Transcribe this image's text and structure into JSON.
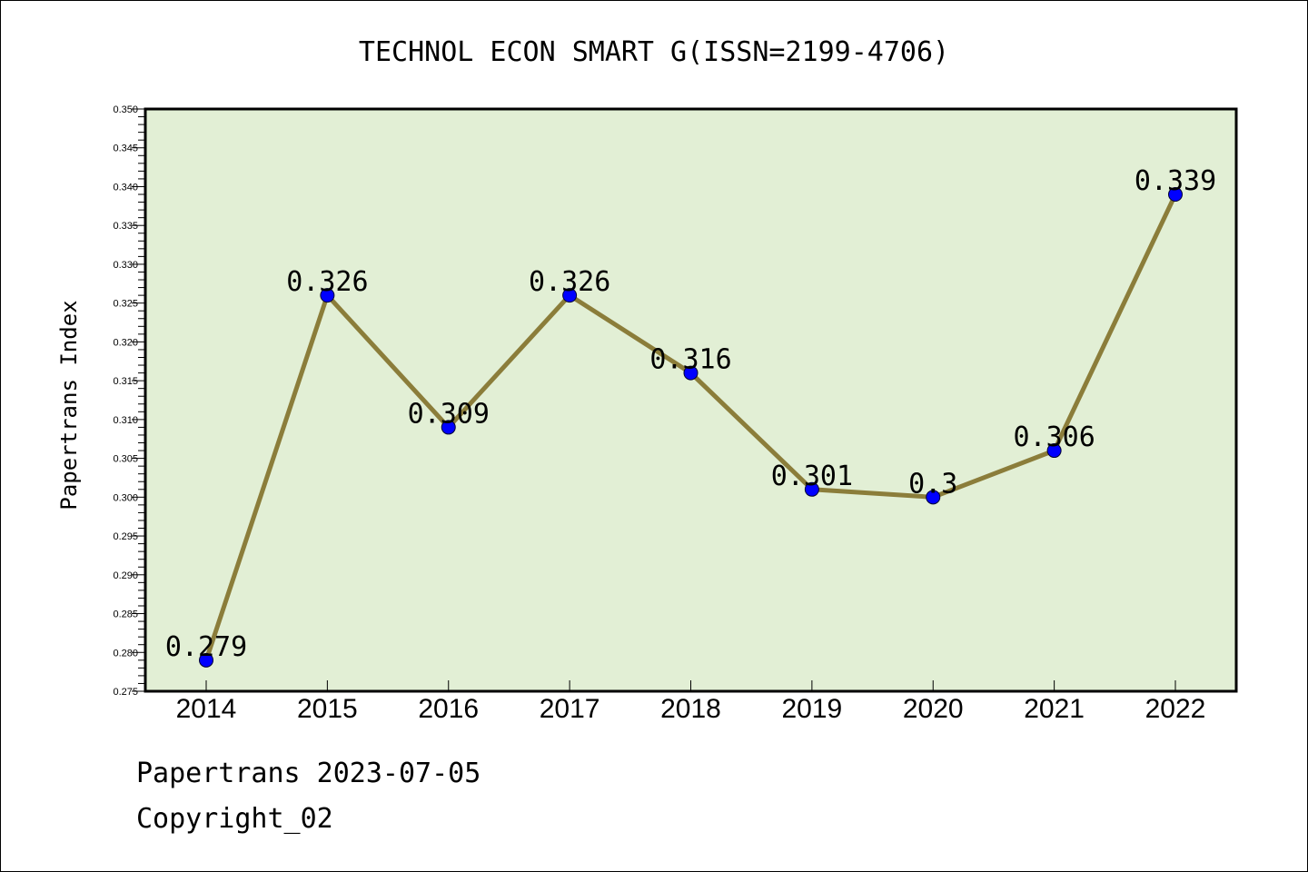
{
  "chart_data": {
    "type": "line",
    "title": "TECHNOL ECON SMART G(ISSN=2199-4706)",
    "xlabel": "",
    "ylabel": "Papertrans Index",
    "categories": [
      "2014",
      "2015",
      "2016",
      "2017",
      "2018",
      "2019",
      "2020",
      "2021",
      "2022"
    ],
    "values": [
      0.279,
      0.326,
      0.309,
      0.326,
      0.316,
      0.301,
      0.3,
      0.306,
      0.339
    ],
    "data_labels": [
      "0.279",
      "0.326",
      "0.309",
      "0.326",
      "0.316",
      "0.301",
      "0.3",
      "0.306",
      "0.339"
    ],
    "ylim": [
      0.275,
      0.35
    ],
    "y_ticks": [
      "0.275",
      "0.280",
      "0.285",
      "0.290",
      "0.295",
      "0.300",
      "0.305",
      "0.310",
      "0.315",
      "0.320",
      "0.325",
      "0.330",
      "0.335",
      "0.340",
      "0.345",
      "0.350"
    ],
    "grid": false,
    "legend": "none",
    "colors": {
      "plot_background": "#e2efd5",
      "line": "#8b7d3a",
      "marker": "#0000ff"
    }
  },
  "footer": {
    "source": "Papertrans 2023-07-05",
    "copyright": "Copyright_02"
  }
}
